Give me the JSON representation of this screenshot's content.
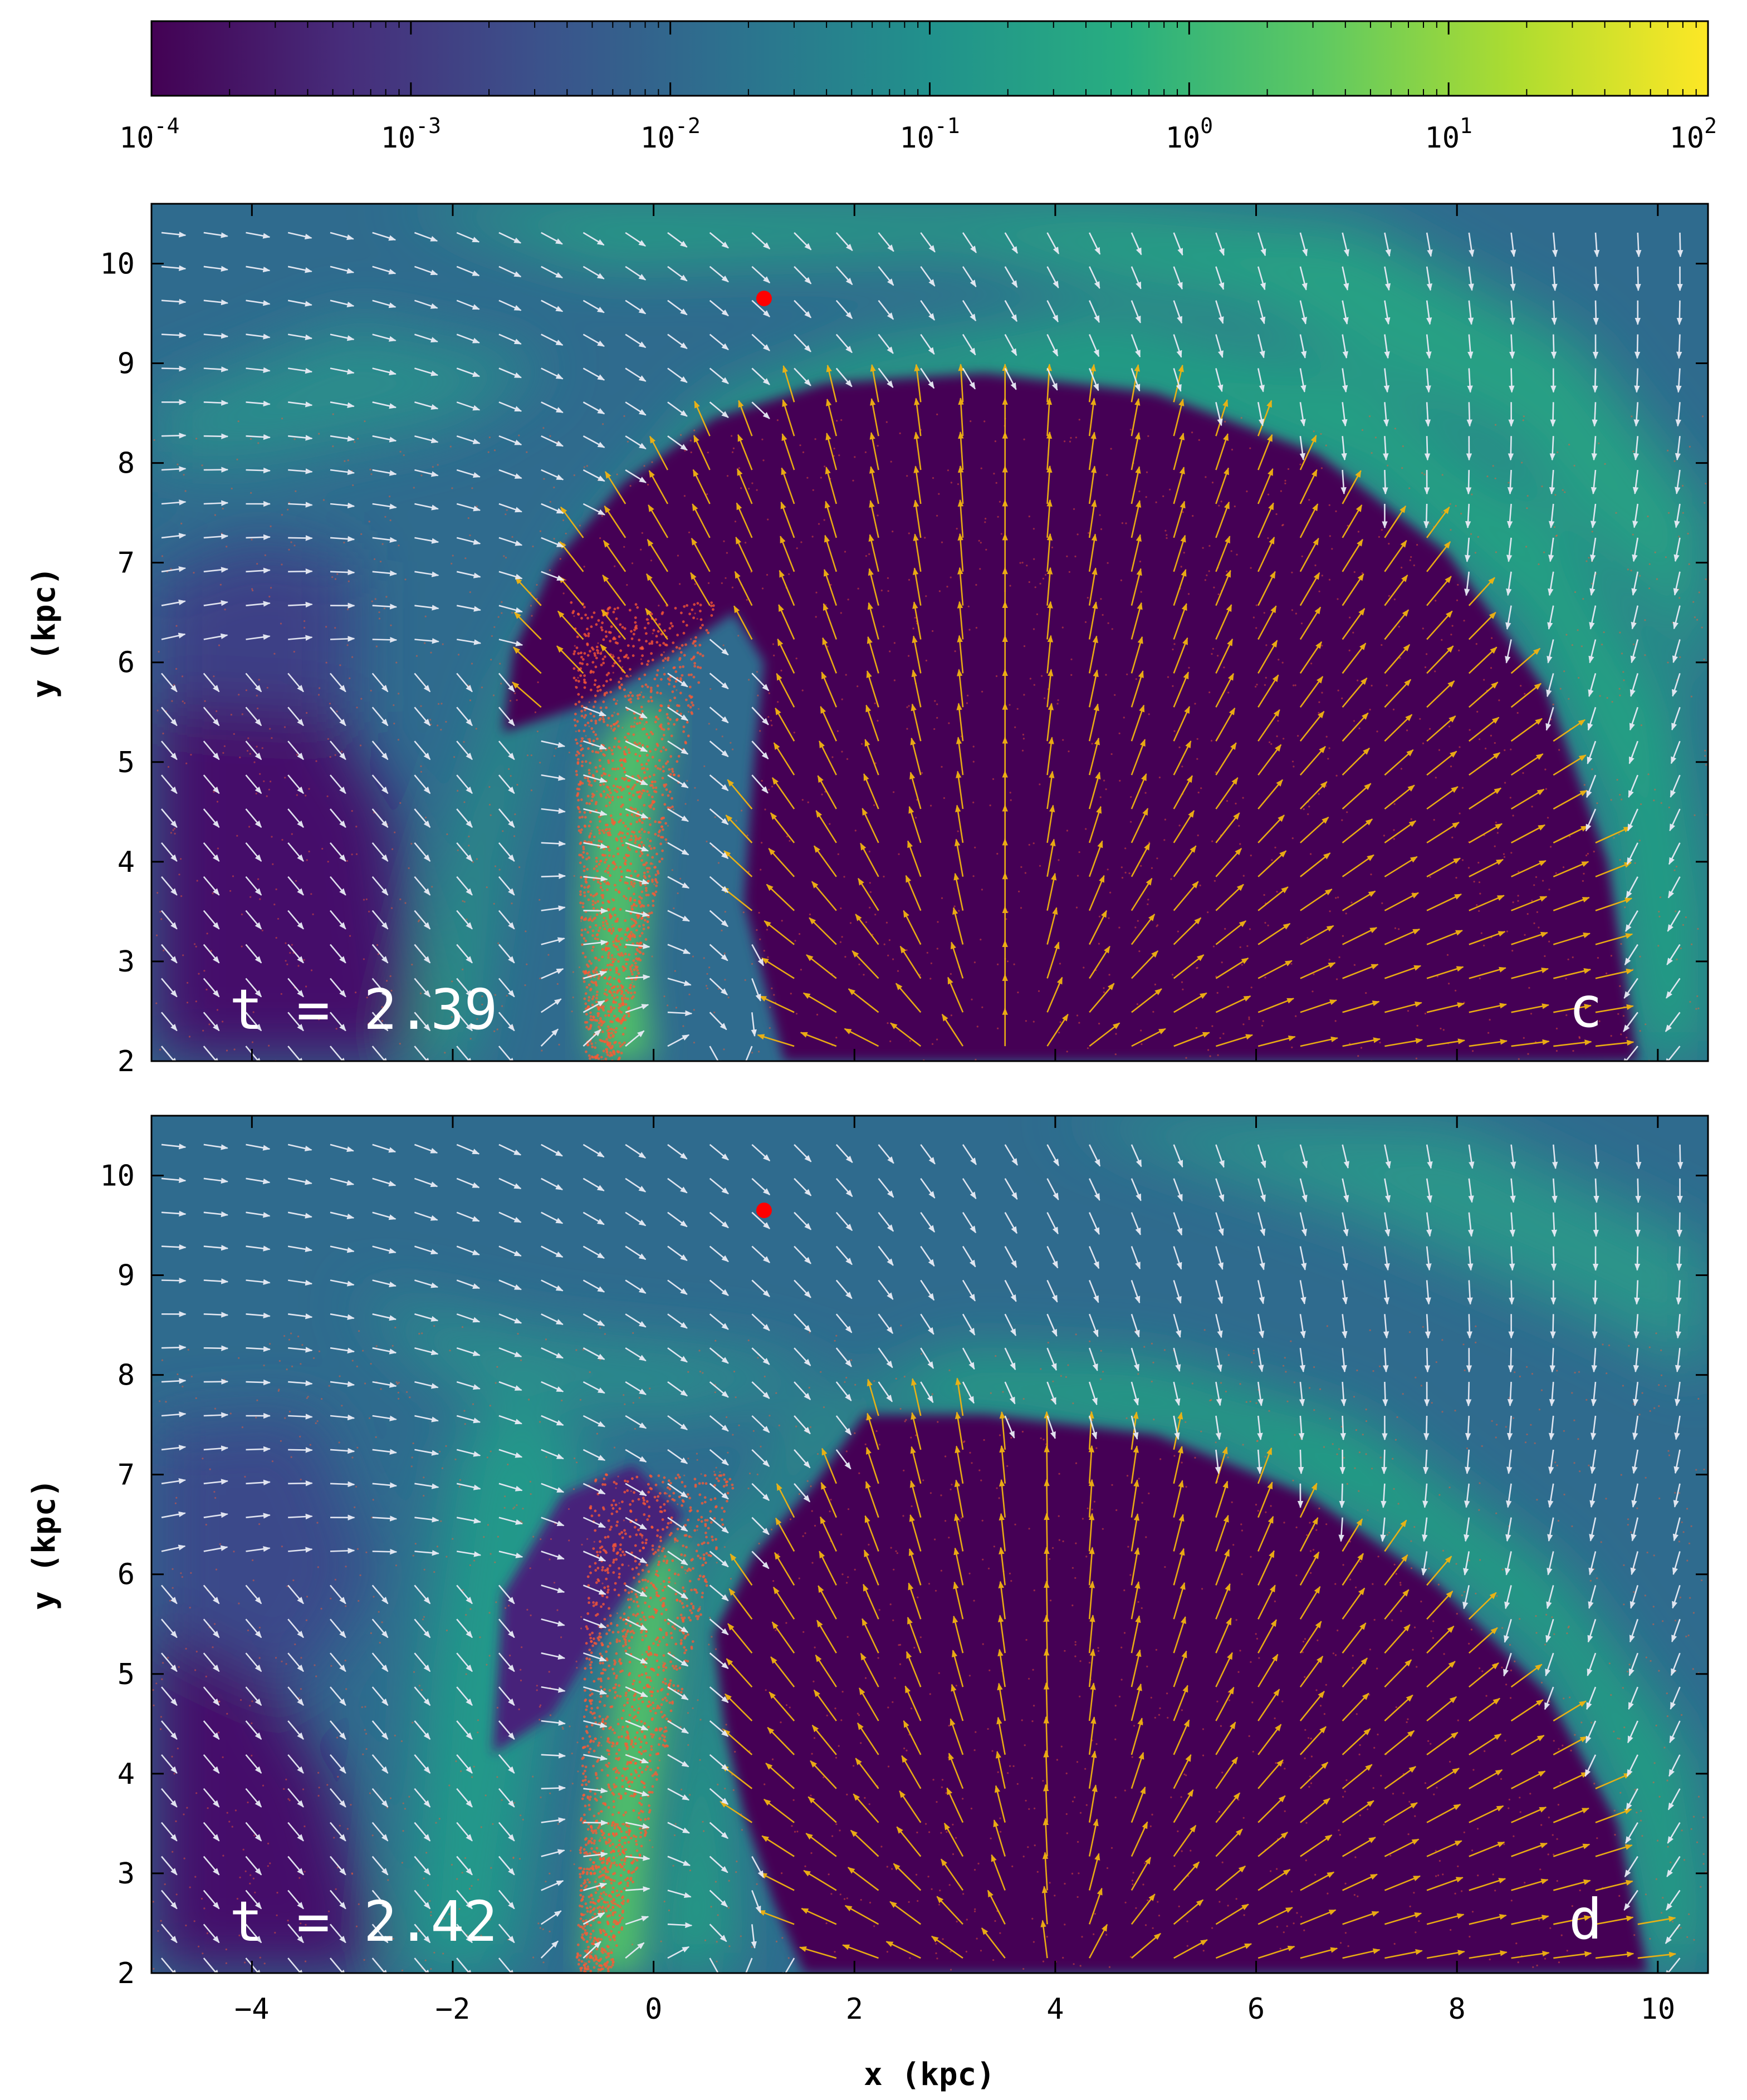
{
  "colormap": [
    "#440154",
    "#472d7b",
    "#3b528b",
    "#2c728e",
    "#21918c",
    "#28ae80",
    "#5ec962",
    "#addc30",
    "#fde725"
  ],
  "colors": {
    "background_min": "#440154",
    "cavity": "#440154",
    "shell_green": "#2fb47c",
    "cold_arrow": "#e9ecf6",
    "hot_arrow": "#f2b411",
    "particles": "#ff5a33",
    "marker": "#ff0000"
  },
  "colorbar": {
    "ticks": [
      {
        "base": "10",
        "exp": "-4",
        "value": 0.0001
      },
      {
        "base": "10",
        "exp": "-3",
        "value": 0.001
      },
      {
        "base": "10",
        "exp": "-2",
        "value": 0.01
      },
      {
        "base": "10",
        "exp": "-1",
        "value": 0.1
      },
      {
        "base": "10",
        "exp": "0",
        "value": 1
      },
      {
        "base": "10",
        "exp": "1",
        "value": 10
      },
      {
        "base": "10",
        "exp": "2",
        "value": 100
      }
    ],
    "scale": "log",
    "range": [
      0.0001,
      100
    ]
  },
  "chart_data": [
    {
      "type": "heatmap",
      "panel_label": "c",
      "time_label": "t = 2.39",
      "xlabel": "x (kpc)",
      "ylabel": "y (kpc)",
      "xlim": [
        -5,
        10.5
      ],
      "ylim": [
        2,
        10.6
      ],
      "xticks": [
        -4,
        -2,
        0,
        2,
        4,
        6,
        8,
        10
      ],
      "yticks": [
        2,
        3,
        4,
        5,
        6,
        7,
        8,
        9,
        10
      ],
      "marker": {
        "x": 1.1,
        "y": 9.65
      },
      "cavity_boundary": [
        [
          -1.5,
          5.3
        ],
        [
          -1.4,
          6.1
        ],
        [
          -1.0,
          7.0
        ],
        [
          -0.3,
          7.8
        ],
        [
          0.6,
          8.45
        ],
        [
          1.7,
          8.8
        ],
        [
          3.3,
          8.9
        ],
        [
          5.0,
          8.7
        ],
        [
          6.6,
          8.1
        ],
        [
          7.9,
          7.1
        ],
        [
          8.9,
          5.7
        ],
        [
          9.5,
          4.0
        ],
        [
          9.8,
          2.0
        ],
        [
          1.3,
          2.0
        ],
        [
          0.9,
          3.6
        ],
        [
          1.0,
          5.0
        ],
        [
          1.1,
          6.0
        ],
        [
          0.8,
          6.5
        ],
        [
          0.2,
          6.1
        ],
        [
          -0.6,
          5.6
        ],
        [
          -1.5,
          5.3
        ]
      ],
      "stem_hot": [
        [
          -0.6,
          2.0
        ],
        [
          -0.7,
          3.5
        ],
        [
          -0.6,
          5.0
        ],
        [
          -0.2,
          5.6
        ],
        [
          0.2,
          5.5
        ],
        [
          0.0,
          4.5
        ],
        [
          -0.1,
          3.0
        ],
        [
          0.0,
          2.0
        ]
      ],
      "particle_core": {
        "x0": -0.5,
        "y0": 2.0,
        "x1": -0.1,
        "y1": 6.6
      }
    },
    {
      "type": "heatmap",
      "panel_label": "d",
      "time_label": "t = 2.42",
      "xlabel": "x (kpc)",
      "ylabel": "y (kpc)",
      "xlim": [
        -5,
        10.5
      ],
      "ylim": [
        2,
        10.6
      ],
      "xticks": [
        -4,
        -2,
        0,
        2,
        4,
        6,
        8,
        10
      ],
      "yticks": [
        2,
        3,
        4,
        5,
        6,
        7,
        8,
        9,
        10
      ],
      "marker": {
        "x": 1.1,
        "y": 9.65
      },
      "cavity_boundary": [
        [
          0.7,
          4.5
        ],
        [
          0.6,
          5.4
        ],
        [
          1.0,
          6.2
        ],
        [
          1.6,
          6.9
        ],
        [
          2.1,
          7.6
        ],
        [
          3.3,
          7.6
        ],
        [
          5.0,
          7.4
        ],
        [
          6.5,
          6.8
        ],
        [
          7.8,
          5.9
        ],
        [
          8.9,
          4.8
        ],
        [
          9.6,
          3.5
        ],
        [
          9.9,
          2.0
        ],
        [
          1.5,
          2.0
        ],
        [
          1.2,
          2.7
        ],
        [
          0.9,
          3.6
        ],
        [
          0.7,
          4.5
        ]
      ],
      "stem_hot": [
        [
          -0.7,
          2.0
        ],
        [
          -0.6,
          3.5
        ],
        [
          -0.4,
          5.0
        ],
        [
          -0.1,
          6.2
        ],
        [
          0.3,
          6.4
        ],
        [
          0.2,
          5.0
        ],
        [
          0.0,
          3.5
        ],
        [
          -0.1,
          2.0
        ]
      ],
      "particle_core": {
        "x0": -0.6,
        "y0": 2.0,
        "x1": 0.1,
        "y1": 7.0
      }
    }
  ]
}
